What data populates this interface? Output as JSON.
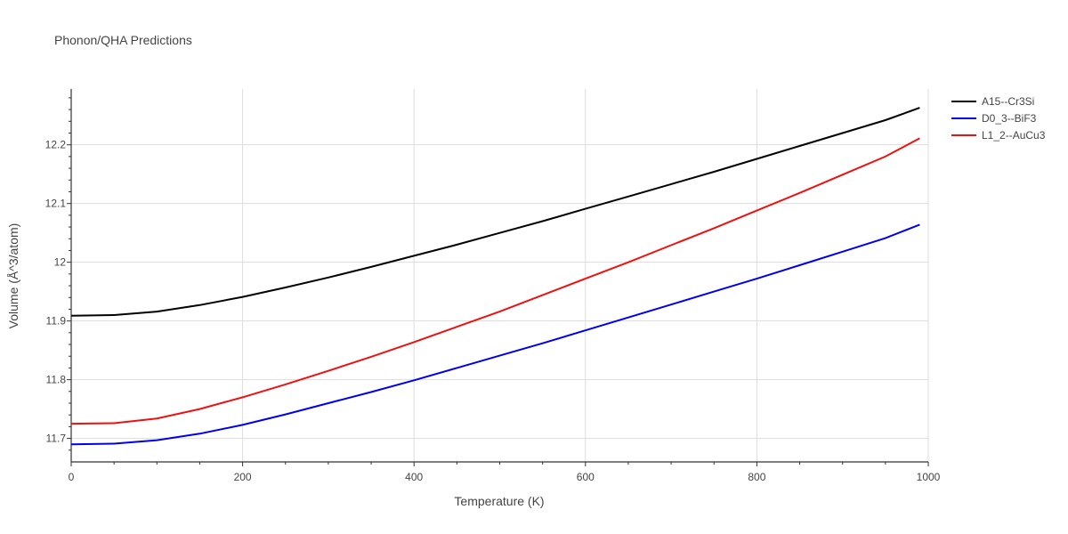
{
  "chart_data": {
    "type": "line",
    "title": "Phonon/QHA Predictions",
    "xlabel": "Temperature (K)",
    "ylabel": "Volume (Å^3/atom)",
    "xlim": [
      0,
      1000
    ],
    "ylim": [
      11.66,
      12.295
    ],
    "xticks": [
      0,
      200,
      400,
      600,
      800,
      1000
    ],
    "xtick_labels": [
      "0",
      "200",
      "400",
      "600",
      "800",
      "1000"
    ],
    "yticks": [
      11.7,
      11.8,
      11.9,
      12.0,
      12.1,
      12.2
    ],
    "ytick_labels": [
      "11.7",
      "11.8",
      "11.9",
      "12",
      "12.1",
      "12.2"
    ],
    "grid": true,
    "legend_position": "top-right",
    "series": [
      {
        "name": "A15--Cr3Si",
        "color": "#000000",
        "x": [
          0,
          50,
          100,
          150,
          200,
          250,
          300,
          350,
          400,
          450,
          500,
          550,
          600,
          650,
          700,
          750,
          800,
          850,
          900,
          950,
          990
        ],
        "y": [
          11.909,
          11.91,
          11.916,
          11.927,
          11.941,
          11.957,
          11.974,
          11.992,
          12.011,
          12.03,
          12.05,
          12.07,
          12.091,
          12.112,
          12.133,
          12.154,
          12.176,
          12.198,
          12.22,
          12.242,
          12.263
        ]
      },
      {
        "name": "D0_3--BiF3",
        "color": "#0000ee",
        "x": [
          0,
          50,
          100,
          150,
          200,
          250,
          300,
          350,
          400,
          450,
          500,
          550,
          600,
          650,
          700,
          750,
          800,
          850,
          900,
          950,
          990
        ],
        "y": [
          11.69,
          11.691,
          11.697,
          11.708,
          11.723,
          11.741,
          11.76,
          11.779,
          11.799,
          11.82,
          11.841,
          11.862,
          11.884,
          11.906,
          11.928,
          11.95,
          11.972,
          11.995,
          12.018,
          12.041,
          12.064
        ]
      },
      {
        "name": "L1_2--AuCu3",
        "color": "#ee1111",
        "x": [
          0,
          50,
          100,
          150,
          200,
          250,
          300,
          350,
          400,
          450,
          500,
          550,
          600,
          650,
          700,
          750,
          800,
          850,
          900,
          950,
          990
        ],
        "y": [
          11.725,
          11.726,
          11.734,
          11.75,
          11.77,
          11.792,
          11.815,
          11.839,
          11.864,
          11.89,
          11.916,
          11.944,
          11.972,
          12.0,
          12.029,
          12.058,
          12.088,
          12.118,
          12.149,
          12.18,
          12.211
        ]
      }
    ]
  }
}
